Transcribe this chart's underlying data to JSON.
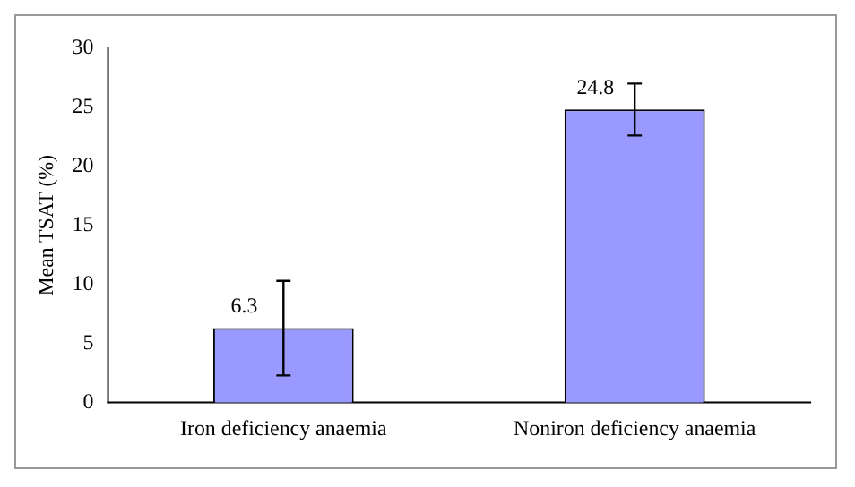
{
  "chart_data": {
    "type": "bar",
    "ylabel": "Mean TSAT (%)",
    "categories": [
      "Iron deficiency anaemia",
      "Noniron deficiency anaemia"
    ],
    "values": [
      6.3,
      24.8
    ],
    "errors": [
      4.0,
      2.2
    ],
    "color": "#9999ff",
    "ylim": [
      0,
      30
    ],
    "yticks": [
      0,
      5,
      10,
      15,
      20,
      25,
      30
    ],
    "grid": false,
    "legend": false,
    "data_labels": true
  }
}
